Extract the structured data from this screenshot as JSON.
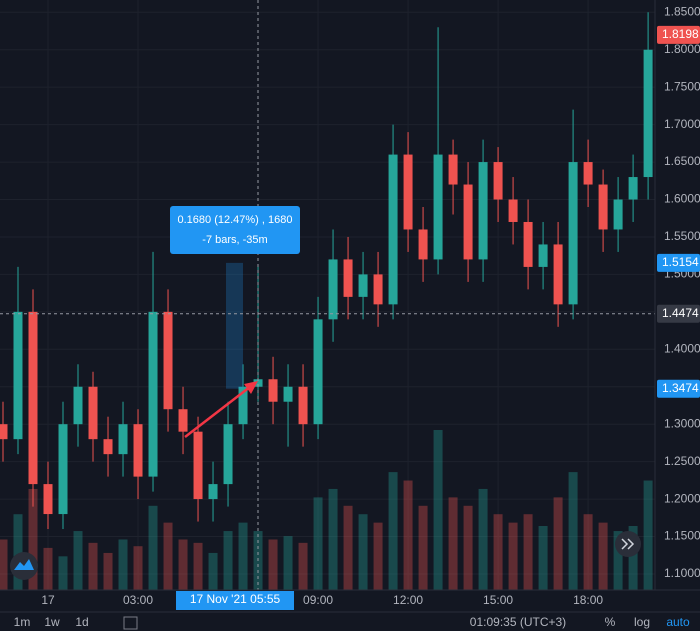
{
  "chart_data": {
    "type": "candlestick",
    "x": [
      -1.5,
      -1,
      -0.5,
      0,
      0.5,
      1,
      1.5,
      2,
      2.5,
      3,
      3.5,
      4,
      4.5,
      5,
      5.5,
      6,
      6.5,
      7,
      7.5,
      8,
      8.5,
      9,
      9.5,
      10,
      10.5,
      11,
      11.5,
      12,
      12.5,
      13,
      13.5,
      14,
      14.5,
      15,
      15.5,
      16,
      16.5,
      17,
      17.5,
      18,
      18.5,
      19,
      19.5,
      20
    ],
    "open": [
      1.3,
      1.28,
      1.45,
      1.22,
      1.18,
      1.3,
      1.35,
      1.28,
      1.26,
      1.3,
      1.23,
      1.45,
      1.32,
      1.29,
      1.2,
      1.22,
      1.3,
      1.35,
      1.36,
      1.33,
      1.35,
      1.3,
      1.44,
      1.52,
      1.47,
      1.5,
      1.46,
      1.66,
      1.56,
      1.52,
      1.66,
      1.62,
      1.52,
      1.65,
      1.6,
      1.57,
      1.51,
      1.54,
      1.46,
      1.65,
      1.62,
      1.56,
      1.6,
      1.63
    ],
    "high": [
      1.33,
      1.51,
      1.48,
      1.25,
      1.33,
      1.38,
      1.37,
      1.31,
      1.33,
      1.32,
      1.53,
      1.48,
      1.35,
      1.31,
      1.25,
      1.33,
      1.38,
      1.51,
      1.39,
      1.38,
      1.38,
      1.47,
      1.56,
      1.55,
      1.53,
      1.53,
      1.7,
      1.69,
      1.59,
      1.83,
      1.68,
      1.65,
      1.68,
      1.67,
      1.63,
      1.6,
      1.57,
      1.57,
      1.72,
      1.68,
      1.64,
      1.63,
      1.66,
      1.85
    ],
    "low": [
      1.25,
      1.26,
      1.19,
      1.16,
      1.16,
      1.27,
      1.25,
      1.23,
      1.23,
      1.2,
      1.21,
      1.29,
      1.26,
      1.17,
      1.17,
      1.19,
      1.28,
      1.33,
      1.3,
      1.27,
      1.27,
      1.28,
      1.41,
      1.44,
      1.44,
      1.43,
      1.44,
      1.53,
      1.49,
      1.5,
      1.58,
      1.49,
      1.49,
      1.57,
      1.54,
      1.48,
      1.48,
      1.43,
      1.44,
      1.59,
      1.53,
      1.53,
      1.57,
      1.6
    ],
    "close": [
      1.28,
      1.45,
      1.22,
      1.18,
      1.3,
      1.35,
      1.28,
      1.26,
      1.3,
      1.23,
      1.45,
      1.32,
      1.29,
      1.2,
      1.22,
      1.3,
      1.35,
      1.36,
      1.33,
      1.35,
      1.3,
      1.44,
      1.52,
      1.47,
      1.5,
      1.46,
      1.66,
      1.56,
      1.52,
      1.66,
      1.62,
      1.52,
      1.65,
      1.6,
      1.57,
      1.51,
      1.54,
      1.46,
      1.65,
      1.62,
      1.56,
      1.6,
      1.63,
      1.8
    ],
    "volume": [
      30,
      45,
      60,
      25,
      20,
      35,
      28,
      22,
      30,
      26,
      50,
      40,
      30,
      28,
      22,
      35,
      40,
      35,
      30,
      32,
      28,
      55,
      60,
      50,
      45,
      40,
      70,
      65,
      50,
      95,
      55,
      50,
      60,
      45,
      40,
      45,
      38,
      55,
      70,
      45,
      40,
      35,
      38,
      65
    ],
    "up_color": "#26a69a",
    "down_color": "#ef5350",
    "xlim": [
      -1.6,
      20.23
    ],
    "xticks": [
      {
        "value": 0,
        "label": "17"
      },
      {
        "value": 3,
        "label": "03:00"
      },
      {
        "value": 9,
        "label": "09:00"
      },
      {
        "value": 12,
        "label": "12:00"
      },
      {
        "value": 15,
        "label": "15:00"
      },
      {
        "value": 18,
        "label": "18:00"
      }
    ],
    "ylim": [
      1.0786,
      1.8664
    ],
    "yticks": [
      {
        "value": 1.1,
        "label": "1.1000"
      },
      {
        "value": 1.15,
        "label": "1.1500"
      },
      {
        "value": 1.2,
        "label": "1.2000"
      },
      {
        "value": 1.25,
        "label": "1.2500"
      },
      {
        "value": 1.3,
        "label": "1.3000"
      },
      {
        "value": 1.35,
        "label": "1.3500"
      },
      {
        "value": 1.4,
        "label": "1.4000"
      },
      {
        "value": 1.45,
        "label": "1.4500"
      },
      {
        "value": 1.5,
        "label": "1.5000"
      },
      {
        "value": 1.55,
        "label": "1.5500"
      },
      {
        "value": 1.6,
        "label": "1.6000"
      },
      {
        "value": 1.65,
        "label": "1.6500"
      },
      {
        "value": 1.7,
        "label": "1.7000"
      },
      {
        "value": 1.75,
        "label": "1.7500"
      },
      {
        "value": 1.8,
        "label": "1.8000"
      },
      {
        "value": 1.85,
        "label": "1.8500"
      }
    ],
    "grid": true,
    "price_badges": [
      {
        "value": 1.8198,
        "label": "1.8198",
        "color": "#ef5350"
      },
      {
        "value": 1.5154,
        "label": "1.5154",
        "color": "#2196f3"
      },
      {
        "value": 1.4474,
        "label": "1.4474",
        "color": "#363a45"
      },
      {
        "value": 1.3474,
        "label": "1.3474",
        "color": "#2196f3"
      }
    ],
    "crosshair_time": "17 Nov '21  05:55",
    "measure_label": [
      "0.1680 (12.47%) , 1680",
      "-7 bars, -35m"
    ],
    "toolbar": [
      "1m",
      "1w",
      "1d",
      "01:09:35 (UTC+3)",
      "%",
      "log",
      "auto"
    ]
  }
}
